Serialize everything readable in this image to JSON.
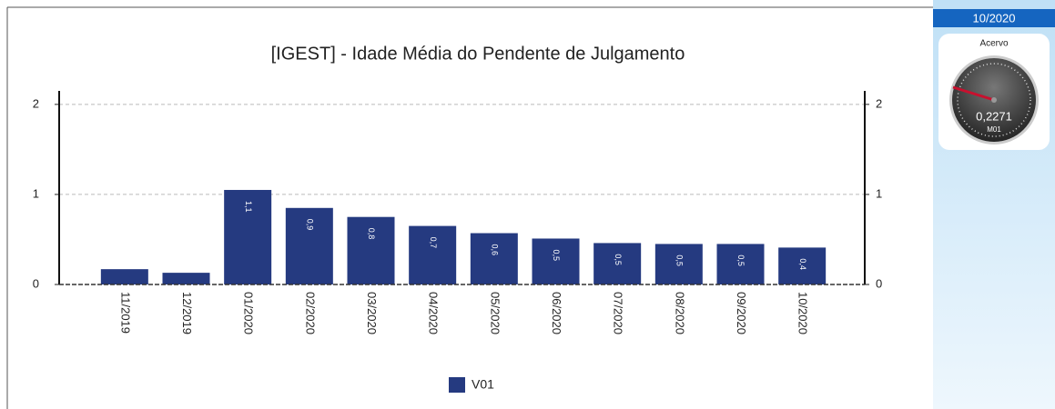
{
  "chart_data": {
    "type": "bar",
    "title": "[IGEST]  - Idade Média do Pendente de Julgamento",
    "categories": [
      "11/2019",
      "12/2019",
      "01/2020",
      "02/2020",
      "03/2020",
      "04/2020",
      "05/2020",
      "06/2020",
      "07/2020",
      "08/2020",
      "09/2020",
      "10/2020"
    ],
    "series": [
      {
        "name": "V01",
        "color": "#253a80",
        "values": [
          0.17,
          0.13,
          1.05,
          0.85,
          0.75,
          0.65,
          0.57,
          0.51,
          0.46,
          0.45,
          0.45,
          0.41
        ],
        "value_labels": [
          null,
          null,
          "1,1",
          "0,9",
          "0,8",
          "0,7",
          "0,6",
          "0,5",
          "0,5",
          "0,5",
          "0,5",
          "0,4"
        ]
      }
    ],
    "ylim": [
      0,
      2.15
    ],
    "yticks": [
      0,
      1,
      2
    ],
    "y2lim": [
      0,
      2.15
    ],
    "y2ticks": [
      0,
      1,
      2
    ],
    "grid": true,
    "legend": "bottom"
  },
  "panel": {
    "period": "10/2020",
    "gauge": {
      "title": "Acervo",
      "value": "0,2271",
      "unit": "M01"
    }
  }
}
